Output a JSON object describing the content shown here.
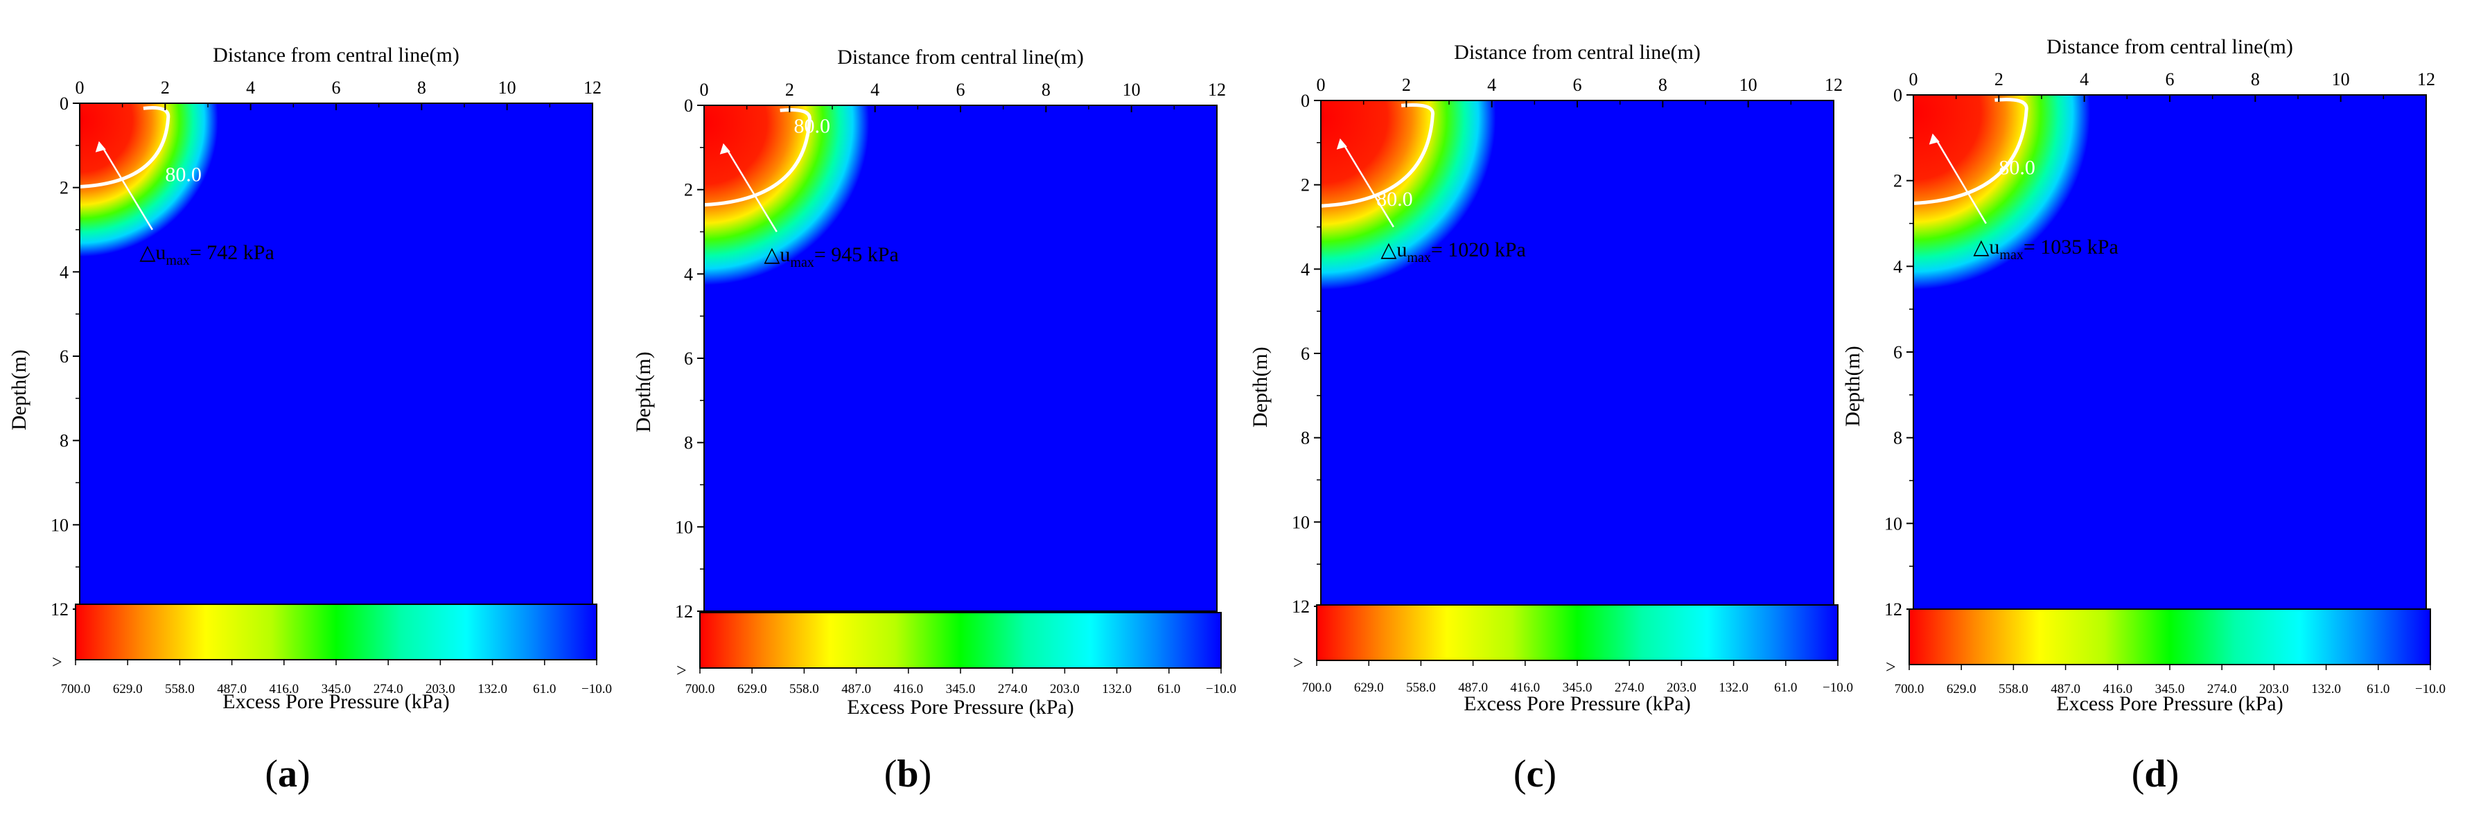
{
  "figure": {
    "panels": [
      {
        "id": "a",
        "label": "a",
        "delta_u_max": "742",
        "contour": "80.0"
      },
      {
        "id": "b",
        "label": "b",
        "delta_u_max": "945",
        "contour": "80.0"
      },
      {
        "id": "c",
        "label": "c",
        "delta_u_max": "1020",
        "contour": "80.0"
      },
      {
        "id": "d",
        "label": "d",
        "delta_u_max": "1035",
        "contour": "80.0"
      }
    ]
  },
  "chart_data": {
    "type": "heatmap",
    "xlabel": "Distance from central line(m)",
    "ylabel": "Depth(m)",
    "xlim": [
      0,
      12
    ],
    "ylim": [
      0,
      12
    ],
    "x_ticks": [
      "0",
      "2",
      "4",
      "6",
      "8",
      "10",
      "12"
    ],
    "y_ticks": [
      "0",
      "2",
      "4",
      "6",
      "8",
      "10",
      "12"
    ],
    "colorbar": {
      "title": "Excess Pore Pressure (kPa)",
      "ticks": [
        "700.0",
        "629.0",
        "558.0",
        "487.0",
        "416.0",
        "345.0",
        "274.0",
        "203.0",
        "132.0",
        "61.0",
        "−10.0"
      ],
      "over_marker": ">",
      "colors": [
        "#ff0000",
        "#ff8800",
        "#ffff00",
        "#b8ff00",
        "#00ff00",
        "#00ffaa",
        "#00ffff",
        "#0088ff",
        "#0000ff"
      ]
    },
    "annotation_prefix": "△u",
    "annotation_sub": "max",
    "annotation_unit": "kPa",
    "panels": [
      {
        "label": "a",
        "delta_u_max_kPa": 742,
        "contour_kPa": 80.0
      },
      {
        "label": "b",
        "delta_u_max_kPa": 945,
        "contour_kPa": 80.0
      },
      {
        "label": "c",
        "delta_u_max_kPa": 1020,
        "contour_kPa": 80.0
      },
      {
        "label": "d",
        "delta_u_max_kPa": 1035,
        "contour_kPa": 80.0
      }
    ]
  }
}
